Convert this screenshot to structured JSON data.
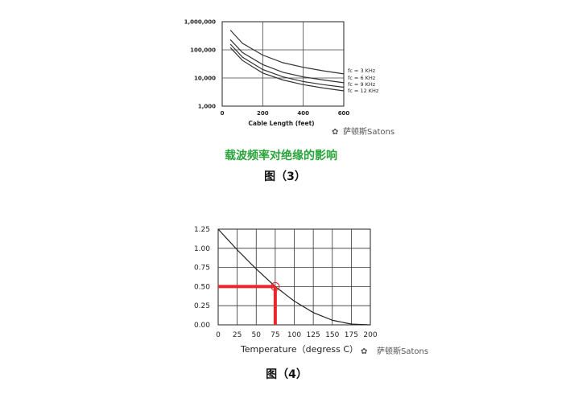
{
  "watermark": "萨顿斯Satons",
  "figure3": {
    "title": "载波频率对绝缘的影响",
    "caption": "图（3）"
  },
  "figure4": {
    "caption": "图（4）"
  },
  "chart_data": [
    {
      "type": "line",
      "title": "载波频率对绝缘的影响",
      "xlabel": "Cable Length (feet)",
      "ylabel": "",
      "xlim": [
        0,
        600
      ],
      "ylim": [
        1000,
        1000000
      ],
      "yscale": "log",
      "grid": true,
      "legend": "right",
      "xticks": [
        0,
        200,
        400,
        600
      ],
      "xtick_labels": [
        "0",
        "200",
        "400",
        "600"
      ],
      "yticks": [
        1000,
        10000,
        100000,
        1000000
      ],
      "ytick_labels": [
        "1,000",
        "10,000",
        "100,000",
        "1,000,000"
      ],
      "series": [
        {
          "name": "fc = 3 KHz",
          "x": [
            40,
            100,
            200,
            300,
            400,
            500,
            600
          ],
          "y": [
            500000,
            170000,
            65000,
            35000,
            24000,
            18000,
            14000
          ]
        },
        {
          "name": "fc = 6 KHz",
          "x": [
            40,
            100,
            200,
            300,
            400,
            500,
            600
          ],
          "y": [
            230000,
            80000,
            30000,
            16000,
            11000,
            8500,
            6800
          ]
        },
        {
          "name": "fc = 9 KHz",
          "x": [
            40,
            100,
            200,
            300,
            400,
            500,
            600
          ],
          "y": [
            160000,
            55000,
            20000,
            11000,
            7500,
            5800,
            4700
          ]
        },
        {
          "name": "fc = 12 KHz",
          "x": [
            40,
            100,
            200,
            300,
            400,
            500,
            600
          ],
          "y": [
            120000,
            42000,
            15000,
            8500,
            5800,
            4400,
            3500
          ]
        }
      ]
    },
    {
      "type": "line",
      "title": "",
      "xlabel": "Temperature（degress C）",
      "ylabel": "",
      "xlim": [
        0,
        200
      ],
      "ylim": [
        0,
        1.25
      ],
      "grid": true,
      "xticks": [
        0,
        25,
        50,
        75,
        100,
        125,
        150,
        175,
        200
      ],
      "xtick_labels": [
        "0",
        "25",
        "50",
        "75",
        "100",
        "125",
        "150",
        "175",
        "200"
      ],
      "yticks": [
        0,
        0.25,
        0.5,
        0.75,
        1.0,
        1.25
      ],
      "ytick_labels": [
        "0.00",
        "0.25",
        "0.50",
        "0.75",
        "1.00",
        "1.25"
      ],
      "series": [
        {
          "name": "",
          "x": [
            0,
            25,
            50,
            75,
            100,
            125,
            150,
            175,
            200
          ],
          "y": [
            1.25,
            0.98,
            0.73,
            0.5,
            0.31,
            0.16,
            0.06,
            0.01,
            0.0
          ]
        }
      ],
      "annotation": {
        "x": 75,
        "y": 0.5,
        "color": "#e8262c"
      }
    }
  ]
}
